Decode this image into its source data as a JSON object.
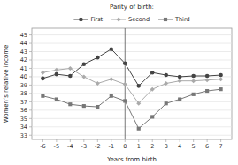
{
  "chart_data": {
    "type": "line",
    "title": "Parity of birth:",
    "xlabel": "Years from birth",
    "ylabel": "Women’s relative income",
    "x": [
      -6,
      -5,
      -4,
      -3,
      -2,
      -1,
      0,
      1,
      2,
      3,
      4,
      5,
      6,
      7
    ],
    "series": [
      {
        "name": "First",
        "color": "#444444",
        "marker": "circle",
        "values": [
          39.8,
          40.3,
          40.1,
          41.5,
          42.3,
          43.3,
          41.6,
          38.9,
          40.5,
          40.2,
          40.0,
          40.1,
          40.1,
          40.2
        ]
      },
      {
        "name": "Second",
        "color": "#aaaaaa",
        "marker": "diamond",
        "values": [
          40.5,
          40.8,
          41.0,
          40.0,
          39.2,
          39.7,
          39.1,
          36.8,
          38.5,
          39.2,
          39.5,
          39.5,
          39.6,
          39.7
        ]
      },
      {
        "name": "Third",
        "color": "#777777",
        "marker": "square",
        "values": [
          37.7,
          37.3,
          36.7,
          36.5,
          36.4,
          37.7,
          37.1,
          33.8,
          35.2,
          36.8,
          37.3,
          37.9,
          38.3,
          38.5
        ]
      }
    ],
    "vline_x": 0,
    "xlim": [
      -6.8,
      7.8
    ],
    "xticks": [
      -6,
      -5,
      -4,
      -3,
      -2,
      -1,
      0,
      1,
      2,
      3,
      4,
      5,
      6,
      7
    ],
    "ylim": [
      32.5,
      45.8
    ],
    "yticks": [
      33,
      34,
      35,
      36,
      37,
      38,
      39,
      40,
      41,
      42,
      43,
      44,
      45
    ],
    "grid": "y",
    "legend": "top"
  }
}
